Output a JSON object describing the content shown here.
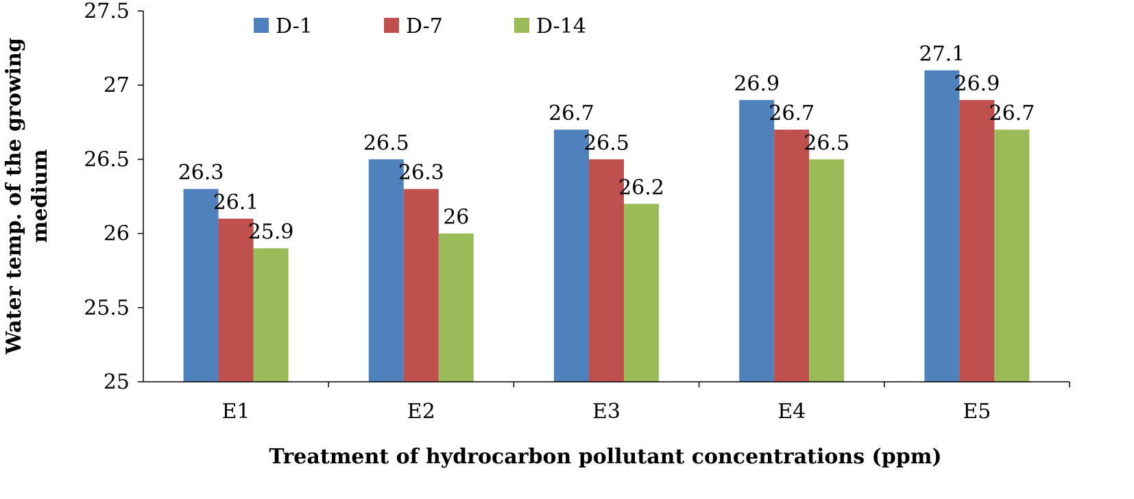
{
  "chart_data": {
    "type": "bar",
    "categories": [
      "E1",
      "E2",
      "E3",
      "E4",
      "E5"
    ],
    "series": [
      {
        "name": "D-1",
        "color": "#4f81bd",
        "values": [
          26.3,
          26.5,
          26.7,
          26.9,
          27.1
        ]
      },
      {
        "name": "D-7",
        "color": "#c0504d",
        "values": [
          26.1,
          26.3,
          26.5,
          26.7,
          26.9
        ]
      },
      {
        "name": "D-14",
        "color": "#9bbb59",
        "values": [
          25.9,
          26,
          26.2,
          26.5,
          26.7
        ]
      }
    ],
    "data_labels": [
      [
        "26.3",
        "26.5",
        "26.7",
        "26.9",
        "27.1"
      ],
      [
        "26.1",
        "26.3",
        "26.5",
        "26.7",
        "26.9"
      ],
      [
        "25.9",
        "26",
        "26.2",
        "26.5",
        "26.7"
      ]
    ],
    "yticks": [
      "25",
      "25.5",
      "26",
      "26.5",
      "27",
      "27.5"
    ],
    "ylim": [
      25,
      27.5
    ],
    "xlabel": "Treatment of hydrocarbon pollutant concentrations (ppm)",
    "ylabel_lines": [
      "Water temp. of the growing",
      "medium"
    ],
    "grid": false,
    "legend_position": "top"
  }
}
